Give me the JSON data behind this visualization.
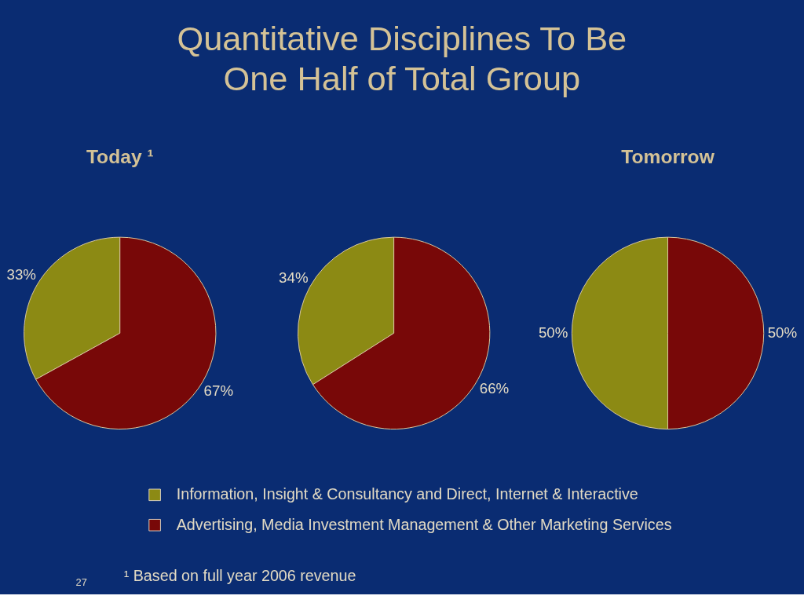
{
  "chart_data": [
    {
      "type": "other",
      "title": "Quantitative Disciplines To Be One Half of Total Group",
      "annotations": [
        "¹ Based on full year 2006 revenue",
        "27"
      ]
    },
    {
      "type": "pie",
      "title": "Today ¹",
      "categories": [
        "Information, Insight & Consultancy and Direct, Internet & Interactive",
        "Advertising, Media Investment Management & Other Marketing Services"
      ],
      "values": [
        33,
        67
      ],
      "colors": [
        "#8c8a14",
        "#780808"
      ],
      "value_labels": [
        "33%",
        "67%"
      ],
      "legend": "bottom"
    },
    {
      "type": "pie",
      "categories": [
        null,
        null
      ],
      "values": [
        34,
        66
      ],
      "colors": [
        "#8c8a14",
        "#780808"
      ],
      "value_labels": [
        "34%",
        "66%"
      ]
    },
    {
      "type": "pie",
      "title": "Tomorrow",
      "categories": [
        null,
        null
      ],
      "values": [
        50,
        50
      ],
      "colors": [
        "#8c8a14",
        "#780808"
      ],
      "value_labels": [
        "50%",
        "50%"
      ]
    }
  ]
}
